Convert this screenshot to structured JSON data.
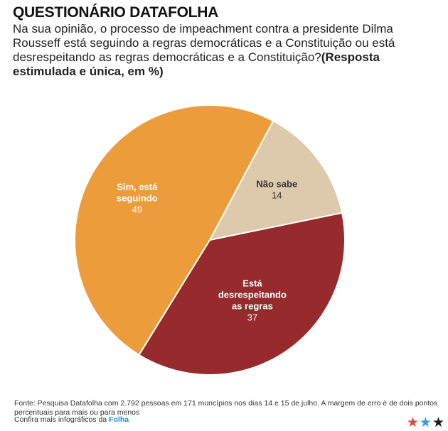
{
  "header": {
    "title": "QUESTIONÁRIO DATAFOLHA",
    "question": "Na sua opinião, o processo de impeachment contra a presidente Dilma Rousseff está seguindo a regras democráticas e a Constituição ou está desrespeitando as regras democráticas e a Constituição?",
    "question_emphasis": "(Resposta estimulada e única, em %)"
  },
  "chart_data": {
    "type": "pie",
    "title": "",
    "unit": "%",
    "slices": [
      {
        "label": "Sim, está seguindo",
        "value": 49,
        "color": "#ec9c3b",
        "text_color": "#ffffff"
      },
      {
        "label": "Não sabe",
        "value": 14,
        "color": "#ddc9ab",
        "text_color": "#333333"
      },
      {
        "label": "Está desrespeitando as regras",
        "value": 37,
        "color": "#962a2d",
        "text_color": "#ffffff"
      }
    ]
  },
  "footer": {
    "source": "Fonte: Pesquisa Datafolha com 2.792 pessoas em 171 muncípios nos dias 14 e 15 de julho. A margem de erro é de dois pontos percentuais para mais ou para menos",
    "more_prefix": "Confira mais infográficos da",
    "more_brand": "Folha"
  }
}
